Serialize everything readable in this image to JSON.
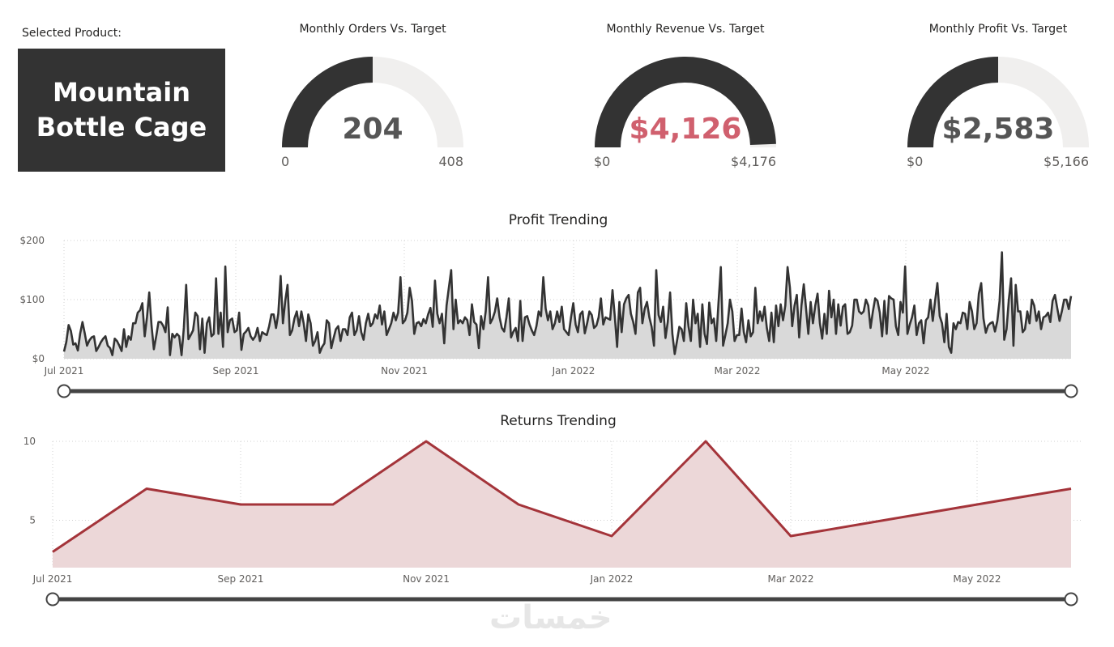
{
  "selected_product": {
    "label": "Selected Product:",
    "name": "Mountain Bottle Cage"
  },
  "gauges": [
    {
      "title": "Monthly Orders Vs. Target",
      "value_label": "204",
      "min_label": "0",
      "max_label": "408",
      "fraction": 0.5,
      "value_color": "#555555"
    },
    {
      "title": "Monthly Revenue Vs. Target",
      "value_label": "$4,126",
      "min_label": "$0",
      "max_label": "$4,176",
      "fraction": 0.988,
      "value_color": "#d0606e"
    },
    {
      "title": "Monthly Profit Vs. Target",
      "value_label": "$2,583",
      "min_label": "$0",
      "max_label": "$5,166",
      "fraction": 0.5,
      "value_color": "#555555"
    }
  ],
  "colors": {
    "gauge_fill": "#333333",
    "gauge_track": "#f0efee",
    "profit_line": "#333333",
    "profit_area": "#d9d9d9",
    "returns_line": "#a4343a",
    "returns_area": "#ecd7d8",
    "slider": "#444444"
  },
  "chart_data": [
    {
      "type": "area",
      "title": "Profit Trending",
      "y_ticks": [
        "$0",
        "$100",
        "$200"
      ],
      "ylim": [
        0,
        200
      ],
      "x_ticks": [
        "Jul 2021",
        "Sep 2021",
        "Nov 2021",
        "Jan 2022",
        "Mar 2022",
        "May 2022"
      ],
      "x_range": [
        "2021-07-01",
        "2022-06-30"
      ],
      "grid": true,
      "series": [
        {
          "values": [
            12,
            28,
            57,
            47,
            24,
            26,
            14,
            42,
            62,
            43,
            22,
            31,
            36,
            38,
            13,
            20,
            28,
            34,
            38,
            22,
            18,
            6,
            34,
            30,
            22,
            13,
            50,
            20,
            38,
            32,
            60,
            60,
            78,
            82,
            94,
            38,
            70,
            112,
            55,
            16,
            38,
            62,
            62,
            56,
            45,
            87,
            6,
            42,
            36,
            42,
            38,
            6,
            52,
            125,
            33,
            40,
            48,
            78,
            72,
            16,
            68,
            10,
            60,
            70,
            38,
            42,
            136,
            42,
            78,
            20,
            156,
            45,
            65,
            68,
            45,
            48,
            78,
            15,
            42,
            46,
            52,
            38,
            32,
            38,
            52,
            30,
            45,
            42,
            40,
            55,
            75,
            75,
            52,
            76,
            140,
            60,
            98,
            125,
            40,
            48,
            68,
            80,
            55,
            80,
            60,
            30,
            75,
            60,
            22,
            30,
            45,
            10,
            20,
            26,
            65,
            60,
            18,
            35,
            50,
            55,
            30,
            50,
            50,
            40,
            70,
            78,
            40,
            48,
            72,
            45,
            32,
            60,
            76,
            55,
            60,
            75,
            68,
            90,
            58,
            80,
            40,
            50,
            60,
            78,
            65,
            78,
            138,
            60,
            65,
            78,
            120,
            98,
            42,
            60,
            62,
            55,
            67,
            60,
            75,
            86,
            54,
            132,
            76,
            60,
            76,
            26,
            90,
            120,
            150,
            50,
            100,
            60,
            65,
            60,
            70,
            65,
            40,
            92,
            62,
            58,
            18,
            72,
            50,
            80,
            138,
            60,
            68,
            80,
            102,
            70,
            52,
            46,
            70,
            102,
            36,
            46,
            52,
            30,
            98,
            30,
            70,
            72,
            58,
            48,
            40,
            55,
            80,
            72,
            138,
            85,
            65,
            80,
            50,
            60,
            80,
            62,
            88,
            50,
            45,
            40,
            70,
            94,
            58,
            45,
            75,
            80,
            43,
            60,
            80,
            74,
            52,
            56,
            70,
            102,
            58,
            70,
            68,
            66,
            116,
            72,
            20,
            96,
            45,
            92,
            102,
            108,
            76,
            62,
            42,
            112,
            120,
            60,
            85,
            96,
            70,
            54,
            22,
            150,
            74,
            62,
            88,
            35,
            62,
            112,
            42,
            8,
            30,
            54,
            50,
            30,
            94,
            55,
            30,
            100,
            60,
            76,
            20,
            92,
            42,
            25,
            95,
            60,
            68,
            30,
            94,
            155,
            22,
            40,
            60,
            100,
            80,
            30,
            40,
            40,
            85,
            45,
            28,
            65,
            38,
            45,
            120,
            60,
            80,
            64,
            88,
            52,
            30,
            78,
            28,
            90,
            55,
            92,
            65,
            90,
            155,
            120,
            55,
            90,
            108,
            36,
            90,
            126,
            85,
            42,
            96,
            60,
            90,
            110,
            60,
            34,
            76,
            42,
            115,
            70,
            100,
            42,
            92,
            56,
            88,
            92,
            42,
            45,
            56,
            100,
            100,
            80,
            76,
            80,
            100,
            90,
            52,
            80,
            102,
            98,
            78,
            38,
            98,
            42,
            106,
            102,
            100,
            55,
            40,
            96,
            78,
            156,
            42,
            58,
            70,
            90,
            40,
            60,
            65,
            26,
            65,
            70,
            100,
            64,
            98,
            128,
            72,
            60,
            28,
            76,
            20,
            10,
            60,
            50,
            62,
            60,
            78,
            76,
            50,
            96,
            80,
            50,
            60,
            110,
            128,
            68,
            44,
            56,
            60,
            62,
            46,
            64,
            98,
            180,
            32,
            50,
            100,
            136,
            22,
            125,
            80,
            80,
            45,
            50,
            80,
            60,
            100,
            90,
            64,
            80,
            50,
            70,
            72,
            78,
            62,
            98,
            108,
            86,
            64,
            80,
            100,
            100,
            84,
            106
          ]
        }
      ]
    },
    {
      "type": "area",
      "title": "Returns Trending",
      "y_ticks": [
        "5",
        "10"
      ],
      "ylim": [
        2,
        10
      ],
      "x_ticks": [
        "Jul 2021",
        "Sep 2021",
        "Nov 2021",
        "Jan 2022",
        "Mar 2022",
        "May 2022"
      ],
      "x": [
        "2021-07",
        "2021-08",
        "2021-09",
        "2021-10",
        "2021-11",
        "2021-12",
        "2022-01",
        "2022-02",
        "2022-03",
        "2022-04",
        "2022-05",
        "2022-06"
      ],
      "grid": true,
      "series": [
        {
          "values": [
            3,
            7,
            6,
            6,
            10,
            6,
            4,
            10,
            4,
            5,
            6,
            7
          ]
        }
      ]
    }
  ]
}
